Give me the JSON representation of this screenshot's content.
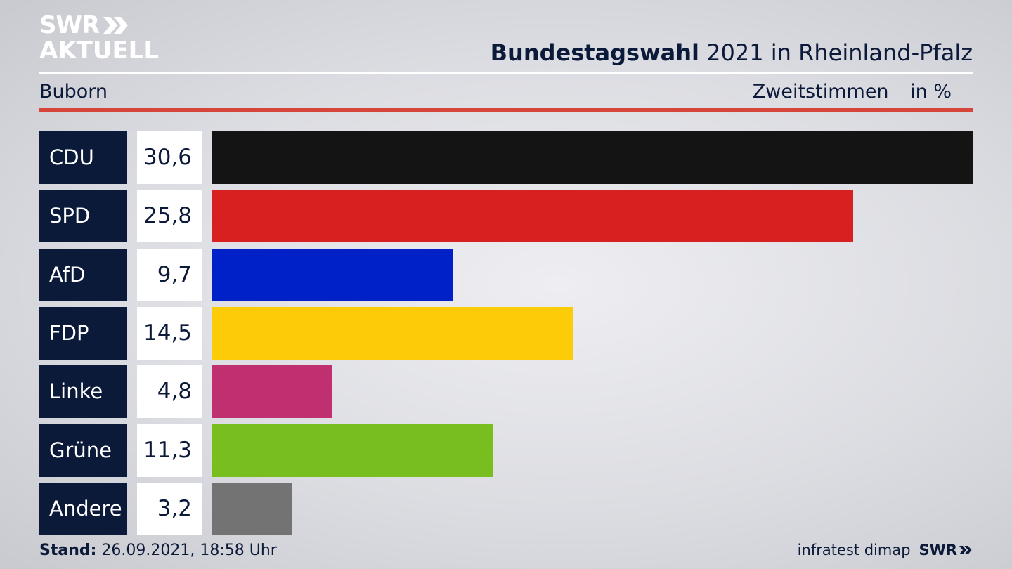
{
  "brand": {
    "line1": "SWR",
    "line2": "AKTUELL"
  },
  "header": {
    "title_bold": "Bundestagswahl",
    "title_rest": "2021 in Rheinland-Pfalz",
    "place": "Buborn",
    "metric": "Zweitstimmen",
    "unit": "in %"
  },
  "chart_data": {
    "type": "bar",
    "orientation": "horizontal",
    "title": "Bundestagswahl 2021 in Rheinland-Pfalz",
    "subtitle": "Buborn",
    "ylabel": "Zweitstimmen in %",
    "categories": [
      "CDU",
      "SPD",
      "AfD",
      "FDP",
      "Linke",
      "Grüne",
      "Andere"
    ],
    "values": [
      30.6,
      25.8,
      9.7,
      14.5,
      4.8,
      11.3,
      3.2
    ],
    "value_labels": [
      "30,6",
      "25,8",
      "9,7",
      "14,5",
      "4,8",
      "11,3",
      "3,2"
    ],
    "colors": [
      "#141414",
      "#d82020",
      "#0020c8",
      "#fccc08",
      "#c03070",
      "#78be1e",
      "#737373"
    ],
    "xlim": [
      0,
      30.6
    ],
    "grid": false,
    "legend": "none"
  },
  "footer": {
    "stand_label": "Stand:",
    "stand_value": "26.09.2021, 18:58 Uhr",
    "source": "infratest dimap",
    "logo": "SWR"
  },
  "colors": {
    "navy": "#0c1a3a",
    "accent_red": "#d6453a"
  }
}
